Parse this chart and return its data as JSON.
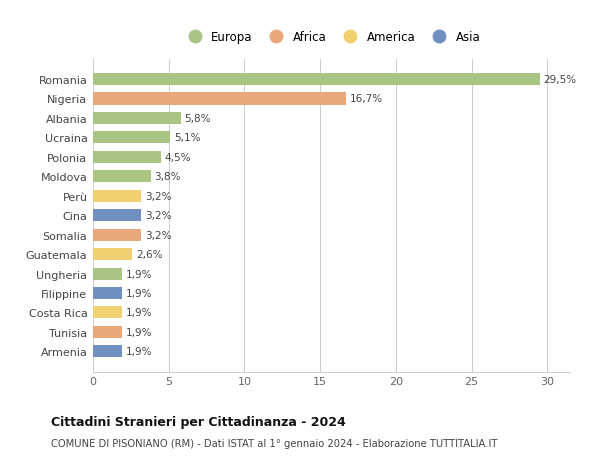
{
  "countries": [
    "Romania",
    "Nigeria",
    "Albania",
    "Ucraina",
    "Polonia",
    "Moldova",
    "Perù",
    "Cina",
    "Somalia",
    "Guatemala",
    "Ungheria",
    "Filippine",
    "Costa Rica",
    "Tunisia",
    "Armenia"
  ],
  "values": [
    29.5,
    16.7,
    5.8,
    5.1,
    4.5,
    3.8,
    3.2,
    3.2,
    3.2,
    2.6,
    1.9,
    1.9,
    1.9,
    1.9,
    1.9
  ],
  "labels": [
    "29,5%",
    "16,7%",
    "5,8%",
    "5,1%",
    "4,5%",
    "3,8%",
    "3,2%",
    "3,2%",
    "3,2%",
    "2,6%",
    "1,9%",
    "1,9%",
    "1,9%",
    "1,9%",
    "1,9%"
  ],
  "continents": [
    "Europa",
    "Africa",
    "Europa",
    "Europa",
    "Europa",
    "Europa",
    "America",
    "Asia",
    "Africa",
    "America",
    "Europa",
    "Asia",
    "America",
    "Africa",
    "Asia"
  ],
  "colors": {
    "Europa": "#aac483",
    "Africa": "#e8a87c",
    "America": "#f0d070",
    "Asia": "#7090c0"
  },
  "legend_order": [
    "Europa",
    "Africa",
    "America",
    "Asia"
  ],
  "title": "Cittadini Stranieri per Cittadinanza - 2024",
  "subtitle": "COMUNE DI PISONIANO (RM) - Dati ISTAT al 1° gennaio 2024 - Elaborazione TUTTITALIA.IT",
  "xlim": [
    0,
    31.5
  ],
  "xticks": [
    0,
    5,
    10,
    15,
    20,
    25,
    30
  ],
  "background_color": "#ffffff",
  "grid_color": "#cccccc",
  "bar_height": 0.62
}
